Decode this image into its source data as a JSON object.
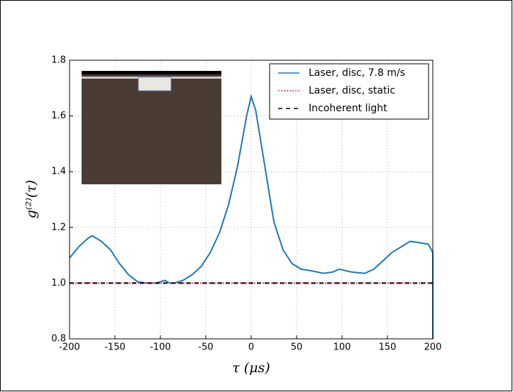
{
  "chart_data": {
    "type": "line",
    "xlabel": "τ (μs)",
    "ylabel": "g⁽²⁾(τ)",
    "xlim": [
      -200,
      200
    ],
    "ylim": [
      0.8,
      1.8
    ],
    "xticks": [
      -200,
      -150,
      -100,
      -50,
      0,
      50,
      100,
      150,
      200
    ],
    "yticks": [
      0.8,
      {
        "value": 1,
        "label": "1.0"
      },
      1.2,
      1.4,
      1.6,
      1.8
    ],
    "grid": true,
    "legend": "upper right",
    "series": [
      {
        "name": "Laser, disc, 7.8 m/s",
        "color": "#1f77b4",
        "style": "solid",
        "x": [
          -200,
          -190,
          -180,
          -175,
          -165,
          -155,
          -145,
          -135,
          -125,
          -115,
          -105,
          -95,
          -90,
          -85,
          -75,
          -65,
          -55,
          -45,
          -35,
          -25,
          -15,
          -5,
          0,
          5,
          15,
          25,
          35,
          45,
          55,
          65,
          80,
          90,
          97,
          110,
          125,
          135,
          145,
          155,
          165,
          175,
          185,
          195,
          200,
          200
        ],
        "values": [
          1.09,
          1.13,
          1.16,
          1.17,
          1.15,
          1.12,
          1.07,
          1.03,
          1.005,
          1.0,
          1.0,
          1.01,
          1.0,
          1.0,
          1.01,
          1.03,
          1.06,
          1.11,
          1.18,
          1.28,
          1.42,
          1.6,
          1.67,
          1.62,
          1.42,
          1.22,
          1.12,
          1.07,
          1.05,
          1.045,
          1.035,
          1.04,
          1.05,
          1.04,
          1.035,
          1.05,
          1.08,
          1.11,
          1.13,
          1.15,
          1.145,
          1.14,
          1.11,
          0.8
        ]
      },
      {
        "name": "Laser, disc, static",
        "color": "#e0306a",
        "style": "dotted",
        "x": [
          -200,
          200
        ],
        "values": [
          1,
          1
        ]
      },
      {
        "name": "Incoherent light",
        "color": "#000000",
        "style": "dashed",
        "x": [
          -200,
          200
        ],
        "values": [
          1,
          1
        ]
      }
    ]
  }
}
